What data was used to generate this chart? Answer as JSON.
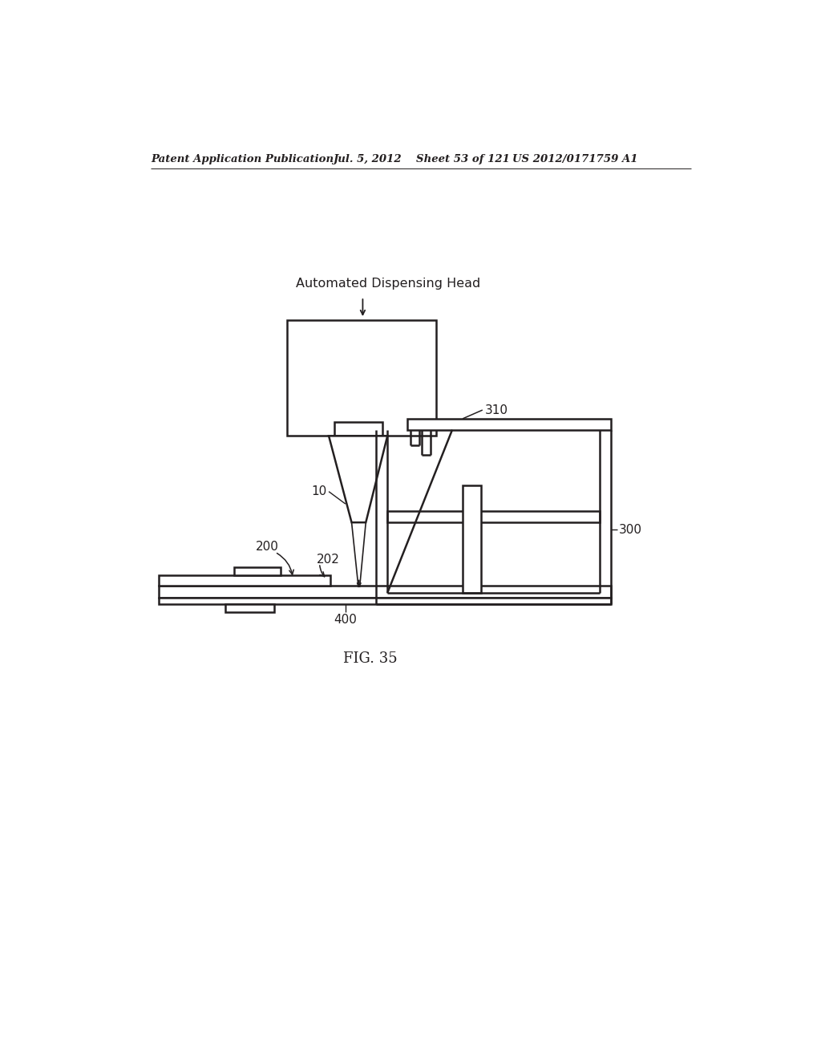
{
  "bg_color": "#ffffff",
  "line_color": "#231f20",
  "line_width": 1.8,
  "header_text": "Patent Application Publication",
  "header_date": "Jul. 5, 2012",
  "header_sheet": "Sheet 53 of 121",
  "header_patent": "US 2012/0171759 A1",
  "label_dispensing_head": "Automated Dispensing Head",
  "label_10": "10",
  "label_200": "200",
  "label_202": "202",
  "label_300": "300",
  "label_310": "310",
  "label_400": "400",
  "fig_label": "FIG. 35"
}
